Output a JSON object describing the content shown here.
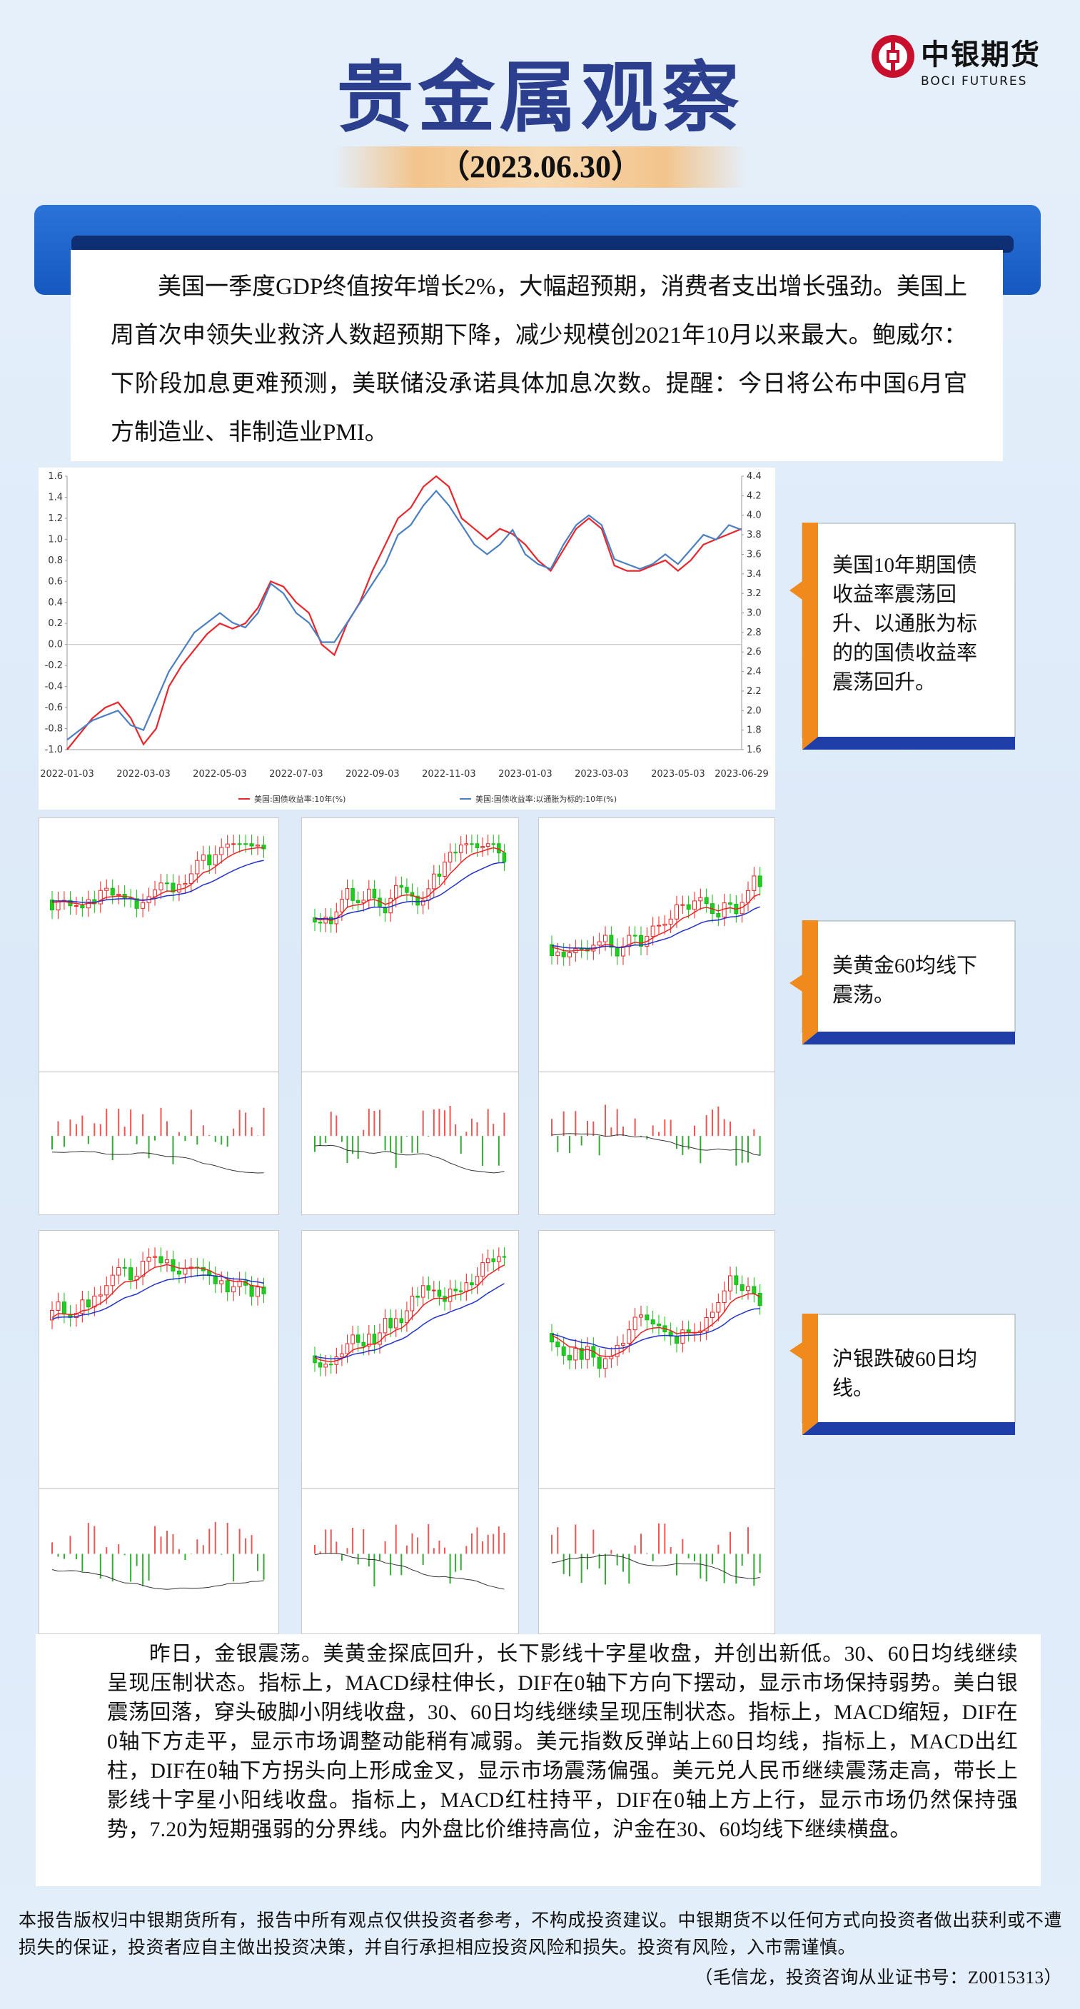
{
  "header": {
    "title": "贵金属观察",
    "date": "（2023.06.30）",
    "logo": {
      "name": "中银期货",
      "en": "BOCI FUTURES"
    }
  },
  "summary": "美国一季度GDP终值按年增长2%，大幅超预期，消费者支出增长强劲。美国上周首次申领失业救济人数超预期下降，减少规模创2021年10月以来最大。鲍威尔：下阶段加息更难预测，美联储没承诺具体加息次数。提醒：今日将公布中国6月官方制造业、非制造业PMI。",
  "chart": {
    "type": "line",
    "categories": [
      "2022-01-03",
      null,
      null,
      null,
      null,
      null,
      "2022-03-03",
      null,
      null,
      null,
      null,
      null,
      "2022-05-03",
      null,
      null,
      null,
      null,
      null,
      "2022-07-03",
      null,
      null,
      null,
      null,
      null,
      "2022-09-03",
      null,
      null,
      null,
      null,
      null,
      "2022-11-03",
      null,
      null,
      null,
      null,
      null,
      "2023-01-03",
      null,
      null,
      null,
      null,
      null,
      "2023-03-03",
      null,
      null,
      null,
      null,
      null,
      "2023-05-03",
      null,
      null,
      null,
      null,
      "2023-06-29"
    ],
    "series": [
      {
        "name": "美国:国债收益率:10年(%)",
        "color": "#e8262b",
        "values": [
          -1.0,
          -0.85,
          -0.7,
          -0.6,
          -0.55,
          -0.7,
          -0.95,
          -0.8,
          -0.4,
          -0.2,
          -0.05,
          0.1,
          0.2,
          0.15,
          0.2,
          0.35,
          0.6,
          0.55,
          0.4,
          0.3,
          0.0,
          -0.1,
          0.2,
          0.4,
          0.7,
          0.95,
          1.2,
          1.3,
          1.5,
          1.6,
          1.5,
          1.2,
          1.1,
          1.0,
          1.1,
          1.05,
          0.95,
          0.8,
          0.7,
          0.9,
          1.1,
          1.2,
          1.1,
          0.75,
          0.7,
          0.7,
          0.75,
          0.8,
          0.7,
          0.8,
          0.95,
          1.0,
          1.05,
          1.1
        ]
      },
      {
        "name": "美国:国债收益率:以通胀为标的:10年(%)",
        "color": "#4a7fc1",
        "axis": "y2",
        "values": [
          1.7,
          1.8,
          1.9,
          1.95,
          2.0,
          1.85,
          1.8,
          2.1,
          2.4,
          2.6,
          2.8,
          2.9,
          3.0,
          2.9,
          2.85,
          3.0,
          3.3,
          3.2,
          3.0,
          2.9,
          2.7,
          2.7,
          2.9,
          3.1,
          3.3,
          3.5,
          3.8,
          3.9,
          4.1,
          4.25,
          4.1,
          3.9,
          3.7,
          3.6,
          3.7,
          3.85,
          3.6,
          3.5,
          3.45,
          3.7,
          3.9,
          4.0,
          3.9,
          3.55,
          3.5,
          3.45,
          3.5,
          3.6,
          3.5,
          3.65,
          3.8,
          3.75,
          3.9,
          3.85
        ]
      }
    ],
    "ylim": [
      -1.0,
      1.6
    ],
    "yticks": [
      {
        "value": -1.0,
        "label": "-1.0"
      },
      -0.8,
      -0.6,
      -0.4,
      -0.2,
      {
        "value": 0,
        "label": "0.0"
      },
      0.2,
      0.4,
      0.6,
      0.8,
      {
        "value": 1,
        "label": "1.0"
      },
      1.2,
      1.4,
      1.6
    ],
    "y2lim": [
      1.6,
      4.4
    ],
    "y2ticks": [
      1.6,
      1.8,
      {
        "value": 2,
        "label": "2.0"
      },
      2.2,
      2.4,
      2.6,
      2.8,
      {
        "value": 3,
        "label": "3.0"
      },
      3.2,
      3.4,
      3.6,
      3.8,
      {
        "value": 4,
        "label": "4.0"
      },
      4.2,
      4.4
    ]
  },
  "callouts": [
    "美国10年期国债收益率震荡回升、以通胀为标的的国债收益率震荡回升。",
    "美黄金60均线下震荡。",
    "沪银跌破60日均线。"
  ],
  "commentary": "昨日，金银震荡。美黄金探底回升，长下影线十字星收盘，并创出新低。30、60日均线继续呈现压制状态。指标上，MACD绿柱伸长，DIF在0轴下方向下摆动，显示市场保持弱势。美白银震荡回落，穿头破脚小阴线收盘，30、60日均线继续呈现压制状态。指标上，MACD缩短，DIF在0轴下方走平，显示市场调整动能稍有减弱。美元指数反弹站上60日均线，指标上，MACD出红柱，DIF在0轴下方拐头向上形成金叉，显示市场震荡偏强。美元兑人民币继续震荡走高，带长上影线十字星小阳线收盘。指标上，MACD红柱持平，DIF在0轴上方上行，显示市场仍然保持强势，7.20为短期强弱的分界线。内外盘比价维持高位，沪金在30、60均线下继续横盘。",
  "footer": {
    "disclaimer": "本报告版权归中银期货所有，报告中所有观点仅供投资者参考，不构成投资建议。中银期货不以任何方式向投资者做出获利或不遭损失的保证，投资者应自主做出投资决策，并自行承担相应投资风险和损失。投资有风险，入市需谨慎。",
    "author": "（毛信龙，投资咨询从业证书号：Z0015313）"
  }
}
